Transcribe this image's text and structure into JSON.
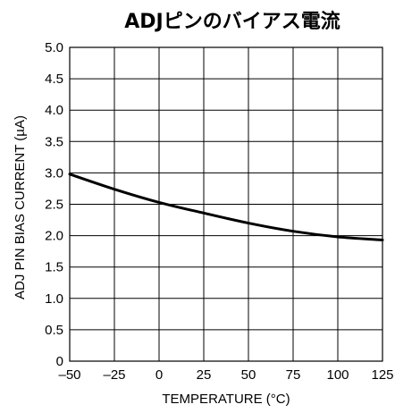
{
  "chart_data": {
    "type": "line",
    "title": "ADJピンのバイアス電流",
    "xlabel": "TEMPERATURE (°C)",
    "ylabel": "ADJ PIN BIAS CURRENT (µA)",
    "xlim": [
      -50,
      125
    ],
    "ylim": [
      0,
      5.0
    ],
    "x_ticks": [
      -50,
      -25,
      0,
      25,
      50,
      75,
      100,
      125
    ],
    "x_tick_labels": [
      "–50",
      "–25",
      "0",
      "25",
      "50",
      "75",
      "100",
      "125"
    ],
    "y_ticks": [
      0,
      0.5,
      1.0,
      1.5,
      2.0,
      2.5,
      3.0,
      3.5,
      4.0,
      4.5,
      5.0
    ],
    "y_tick_labels": [
      "0",
      "0.5",
      "1.0",
      "1.5",
      "2.0",
      "2.5",
      "3.0",
      "3.5",
      "4.0",
      "4.5",
      "5.0"
    ],
    "grid": true,
    "series": [
      {
        "x": [
          -50,
          -25,
          0,
          25,
          50,
          75,
          100,
          125
        ],
        "y": [
          2.98,
          2.74,
          2.53,
          2.36,
          2.2,
          2.07,
          1.98,
          1.93
        ]
      }
    ]
  }
}
